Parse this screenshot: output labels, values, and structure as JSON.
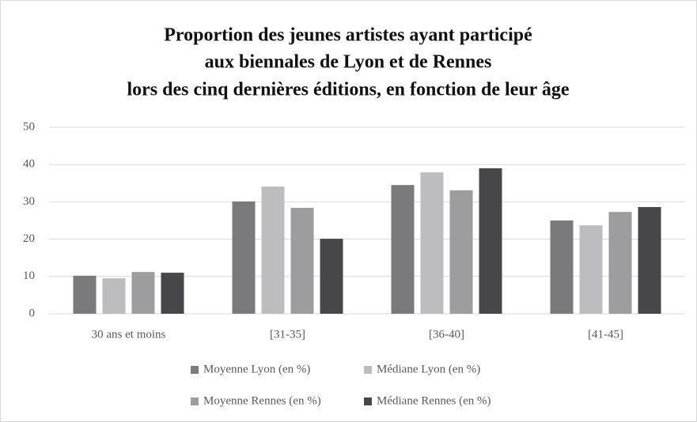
{
  "chart_data": {
    "type": "bar",
    "title": [
      "Proportion des jeunes artistes ayant participé",
      "aux biennales de Lyon et de Rennes",
      "lors des cinq dernières éditions, en fonction de leur âge"
    ],
    "categories": [
      "30 ans et moins",
      "[31-35]",
      "[36-40]",
      "[41-45]"
    ],
    "series": [
      {
        "name": "Moyenne Lyon (en %)",
        "color": "#7a7a7c",
        "values": [
          10.2,
          30.1,
          34.5,
          25.0
        ]
      },
      {
        "name": "Médiane Lyon (en %)",
        "color": "#bdbdbf",
        "values": [
          9.5,
          34.1,
          37.9,
          23.7
        ]
      },
      {
        "name": "Moyenne Rennes (en %)",
        "color": "#9d9d9f",
        "values": [
          11.2,
          28.4,
          33.1,
          27.3
        ]
      },
      {
        "name": "Médiane Rennes (en %)",
        "color": "#474749",
        "values": [
          11.0,
          20.1,
          39.0,
          28.6
        ]
      }
    ],
    "ylim": [
      0,
      50
    ],
    "yticks": [
      0,
      10,
      20,
      30,
      40,
      50
    ],
    "grid": true,
    "legend": "bottom"
  }
}
